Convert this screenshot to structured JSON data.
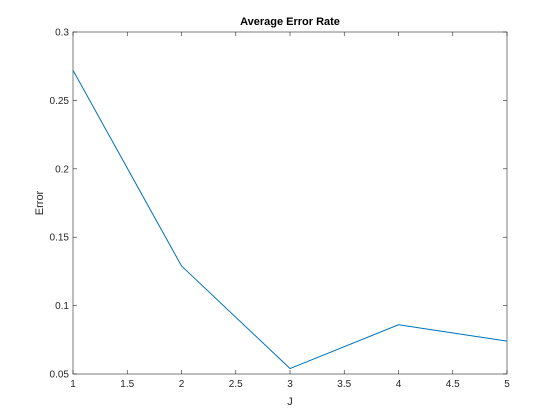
{
  "chart_data": {
    "type": "line",
    "title": "Average Error Rate",
    "xlabel": "J",
    "ylabel": "Error",
    "x": [
      1,
      2,
      3,
      4,
      5
    ],
    "series": [
      {
        "values": [
          0.272,
          0.129,
          0.054,
          0.086,
          0.074
        ],
        "color": "#0072BD"
      }
    ],
    "xlim": [
      1,
      5
    ],
    "ylim": [
      0.05,
      0.3
    ],
    "xticks": [
      1,
      1.5,
      2,
      2.5,
      3,
      3.5,
      4,
      4.5,
      5
    ],
    "xtick_labels": [
      "1",
      "1.5",
      "2",
      "2.5",
      "3",
      "3.5",
      "4",
      "4.5",
      "5"
    ],
    "yticks": [
      0.05,
      0.1,
      0.15,
      0.2,
      0.25,
      0.3
    ],
    "ytick_labels": [
      "0.05",
      "0.1",
      "0.15",
      "0.2",
      "0.25",
      "0.3"
    ],
    "grid": false,
    "legend": "none"
  }
}
